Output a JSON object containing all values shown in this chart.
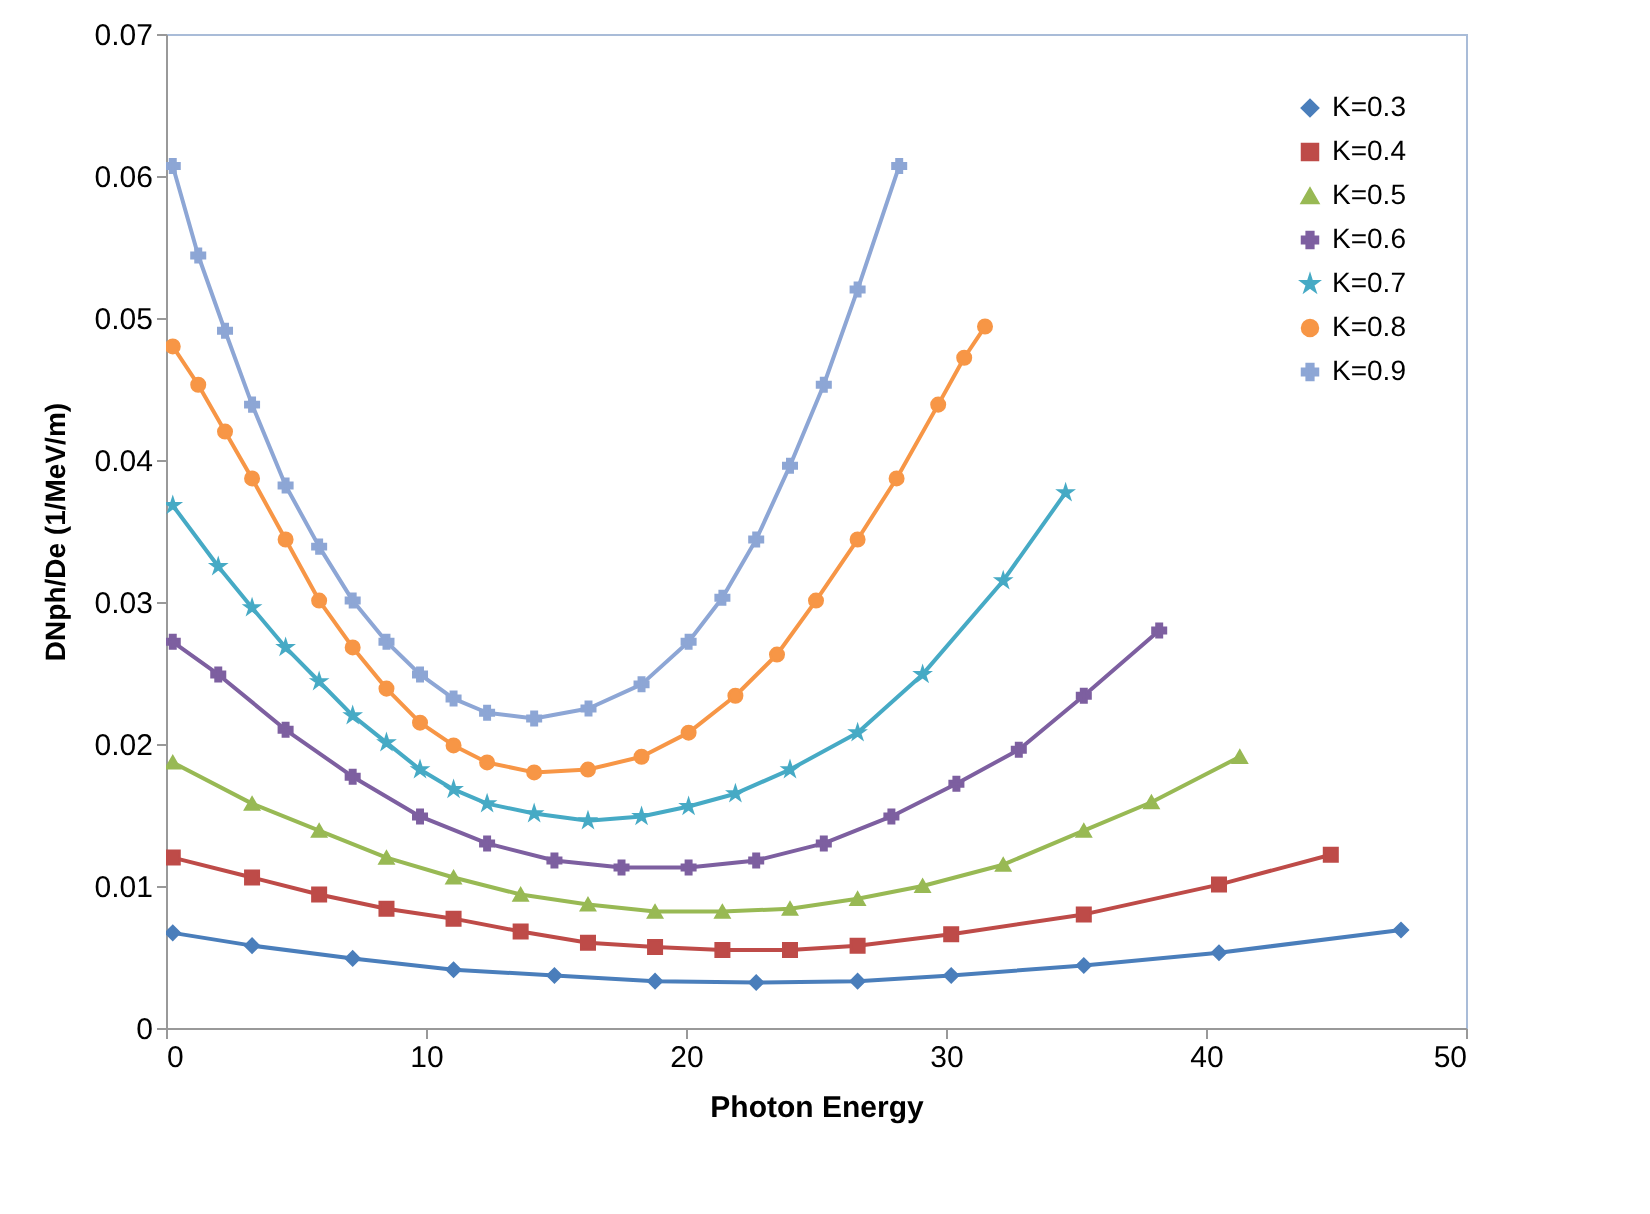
{
  "chart_data": {
    "type": "line",
    "xlabel": "Photon Energy",
    "ylabel": "DNph/De (1/MeV/m)",
    "xlim": [
      0,
      50
    ],
    "xticks": [
      0,
      10,
      20,
      30,
      40,
      50
    ],
    "ylim": [
      0,
      0.07
    ],
    "yticks": [
      0,
      0.01,
      0.02,
      0.03,
      0.04,
      0.05,
      0.06,
      0.07
    ],
    "legend": "top right",
    "series": [
      {
        "name": "K=0.3",
        "color": "#4a7ebb",
        "marker": "diamond",
        "x": [
          0.26,
          3.31,
          7.18,
          11.06,
          14.94,
          18.81,
          22.7,
          26.6,
          30.2,
          35.3,
          40.5,
          47.5
        ],
        "values": [
          0.0067,
          0.0058,
          0.0049,
          0.0041,
          0.0037,
          0.0033,
          0.0032,
          0.0033,
          0.0037,
          0.0044,
          0.0053,
          0.0069
        ]
      },
      {
        "name": "K=0.4",
        "color": "#be4b48",
        "marker": "square",
        "x": [
          0.26,
          3.31,
          5.89,
          8.48,
          11.06,
          13.64,
          16.23,
          18.81,
          21.4,
          24.0,
          26.6,
          30.2,
          35.3,
          40.5,
          44.8
        ],
        "values": [
          0.012,
          0.0106,
          0.0094,
          0.0084,
          0.0077,
          0.0068,
          0.006,
          0.0057,
          0.0055,
          0.0055,
          0.0058,
          0.0066,
          0.008,
          0.0101,
          0.0122
        ]
      },
      {
        "name": "K=0.5",
        "color": "#98b954",
        "marker": "triangle",
        "x": [
          0.26,
          3.31,
          5.89,
          8.48,
          11.06,
          13.64,
          16.23,
          18.81,
          21.4,
          24.0,
          26.6,
          29.1,
          32.2,
          35.3,
          37.9,
          41.3
        ],
        "values": [
          0.0187,
          0.0158,
          0.0139,
          0.012,
          0.0106,
          0.0094,
          0.0087,
          0.0082,
          0.0082,
          0.0084,
          0.0091,
          0.01,
          0.0115,
          0.0139,
          0.0159,
          0.0191
        ]
      },
      {
        "name": "K=0.6",
        "color": "#7d5fa0",
        "marker": "cross",
        "x": [
          0.26,
          2.01,
          4.6,
          7.18,
          9.77,
          12.35,
          14.94,
          17.52,
          20.1,
          22.7,
          25.3,
          27.9,
          30.4,
          32.8,
          35.3,
          38.2
        ],
        "values": [
          0.0272,
          0.0249,
          0.021,
          0.0177,
          0.0149,
          0.013,
          0.0118,
          0.0113,
          0.0113,
          0.0118,
          0.013,
          0.0149,
          0.0172,
          0.0196,
          0.0234,
          0.028
        ]
      },
      {
        "name": "K=0.7",
        "color": "#46aac5",
        "marker": "star",
        "x": [
          0.26,
          2.01,
          3.31,
          4.6,
          5.89,
          7.18,
          8.48,
          9.77,
          11.06,
          12.35,
          14.16,
          16.23,
          18.29,
          20.1,
          21.9,
          24.0,
          26.6,
          29.1,
          32.2,
          34.6
        ],
        "values": [
          0.0368,
          0.0325,
          0.0296,
          0.0268,
          0.0244,
          0.022,
          0.0201,
          0.0182,
          0.0168,
          0.0158,
          0.0151,
          0.0146,
          0.0149,
          0.0156,
          0.0165,
          0.0182,
          0.0208,
          0.0249,
          0.0315,
          0.0377
        ]
      },
      {
        "name": "K=0.8",
        "color": "#f79646",
        "marker": "circle",
        "x": [
          0.26,
          1.24,
          2.27,
          3.31,
          4.6,
          5.89,
          7.18,
          8.48,
          9.77,
          11.06,
          12.35,
          14.16,
          16.23,
          18.29,
          20.1,
          21.9,
          23.5,
          25.0,
          26.6,
          28.1,
          29.7,
          30.7,
          31.5
        ],
        "values": [
          0.048,
          0.0453,
          0.042,
          0.0387,
          0.0344,
          0.0301,
          0.0268,
          0.0239,
          0.0215,
          0.0199,
          0.0187,
          0.018,
          0.0182,
          0.0191,
          0.0208,
          0.0234,
          0.0263,
          0.0301,
          0.0344,
          0.0387,
          0.0439,
          0.0472,
          0.0494
        ]
      },
      {
        "name": "K=0.9",
        "color": "#8da6d5",
        "marker": "cross",
        "x": [
          0.26,
          1.24,
          2.27,
          3.31,
          4.6,
          5.89,
          7.18,
          8.48,
          9.77,
          11.06,
          12.35,
          14.16,
          16.25,
          18.29,
          20.1,
          21.4,
          22.7,
          24.0,
          25.3,
          26.6,
          28.2
        ],
        "values": [
          0.0607,
          0.0544,
          0.0491,
          0.0439,
          0.0382,
          0.0339,
          0.0301,
          0.0272,
          0.0249,
          0.0232,
          0.0222,
          0.0218,
          0.0225,
          0.0242,
          0.0272,
          0.0303,
          0.0344,
          0.0396,
          0.0453,
          0.052,
          0.0607
        ]
      }
    ]
  }
}
